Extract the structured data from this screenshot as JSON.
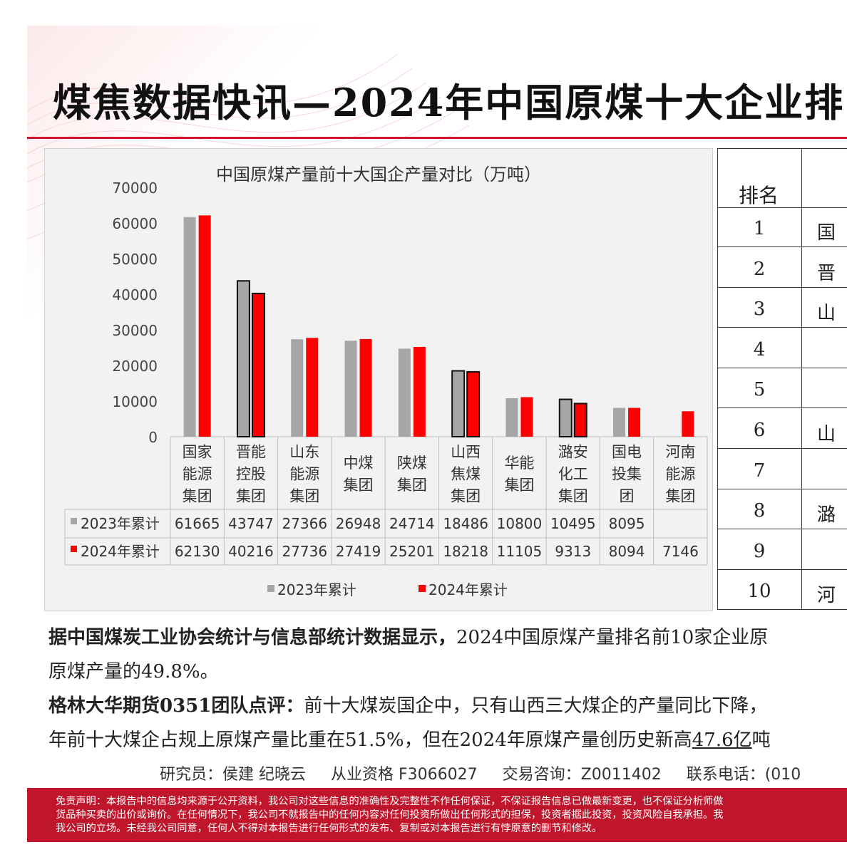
{
  "header": {
    "title": "煤焦数据快讯—2024年中国原煤十大企业排"
  },
  "chart_data": {
    "type": "bar",
    "title": "中国原煤产量前十大国企产量对比（万吨）",
    "categories": [
      [
        "国家",
        "能源",
        "集团"
      ],
      [
        "晋能",
        "控股",
        "集团"
      ],
      [
        "山东",
        "能源",
        "集团"
      ],
      [
        "中煤",
        "集团"
      ],
      [
        "陕煤",
        "集团"
      ],
      [
        "山西",
        "焦煤",
        "集团"
      ],
      [
        "华能",
        "集团"
      ],
      [
        "潞安",
        "化工",
        "集团"
      ],
      [
        "国电",
        "投集",
        "团"
      ],
      [
        "河南",
        "能源",
        "集团"
      ]
    ],
    "series": [
      {
        "name": "2023年累计",
        "color": "#a6a6a6",
        "values": [
          61665,
          43747,
          27366,
          26948,
          24714,
          18486,
          10800,
          10495,
          8095,
          null
        ]
      },
      {
        "name": "2024年累计",
        "color": "#ff0000",
        "values": [
          62130,
          40216,
          27736,
          27419,
          25201,
          18218,
          11105,
          9313,
          8094,
          7146
        ]
      }
    ],
    "outlined": [
      1,
      5,
      7
    ],
    "ylim": [
      0,
      70000
    ],
    "yticks": [
      0,
      10000,
      20000,
      30000,
      40000,
      50000,
      60000,
      70000
    ],
    "legend_position": "bottom"
  },
  "ranking": {
    "header": "排名",
    "rows": [
      {
        "rank": "1",
        "name": "国"
      },
      {
        "rank": "2",
        "name": "晋"
      },
      {
        "rank": "3",
        "name": "山"
      },
      {
        "rank": "4",
        "name": ""
      },
      {
        "rank": "5",
        "name": ""
      },
      {
        "rank": "6",
        "name": "山"
      },
      {
        "rank": "7",
        "name": ""
      },
      {
        "rank": "8",
        "name": "潞"
      },
      {
        "rank": "9",
        "name": ""
      },
      {
        "rank": "10",
        "name": "河"
      }
    ]
  },
  "summary": {
    "line1": "据中国煤炭工业协会统计与信息部统计数据显示，",
    "line1_rest": "2024中国原煤产量排名前10家企业原",
    "line2": "原煤产量的49.8%。",
    "comment_label": "格林大华期货0351团队点评：",
    "comment_text": "前十大煤炭国企中，只有山西三大煤企的产量同比下降，",
    "line4_a": "年前十大煤企占规上原煤产量比重在51.5%，但在2024年原煤产量创历史新高",
    "line4_u": "47.6亿",
    "line4_b": "吨"
  },
  "contacts": {
    "researchers": "研究员：侯建 纪晓云",
    "license": "从业资格 F3066027",
    "advisory": "交易咨询：Z0011402",
    "phone": "联系电话：(010"
  },
  "disclaimer": {
    "line1": "免责声明：本报告中的信息均来源于公开资料，我公司对这些信息的准确性及完整性不作任何保证，不保证报告信息已做最新变更，也不保证分析师做",
    "line2": "货品种买卖的出价或询价。在任何情况下，我公司不就报告中的任何内容对任何投资所做出任何形式的担保，投资者据此投资，投资风险自我承担。我",
    "line3": "我公司的立场。未经我公司同意，任何人不得对本报告进行任何形式的发布、复制或对本报告进行有悖原意的删节和修改。"
  }
}
